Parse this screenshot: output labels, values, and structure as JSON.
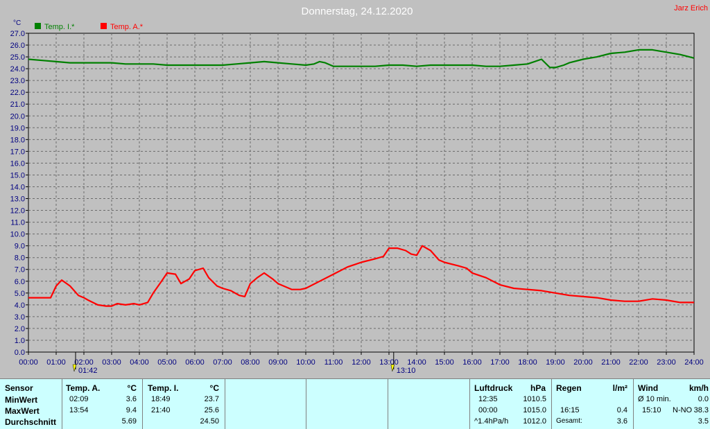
{
  "title": "Donnerstag, 24.12.2020",
  "author": "Jarz Erich",
  "unit": "°C",
  "legend": [
    {
      "label": "Temp. I.*",
      "color": "#008000"
    },
    {
      "label": "Temp. A.*",
      "color": "#ff0000"
    }
  ],
  "chart_data": {
    "type": "line",
    "title": "Donnerstag, 24.12.2020",
    "ylabel": "°C",
    "xlabel": "",
    "ylim": [
      0.0,
      27.0
    ],
    "xlim": [
      0,
      24
    ],
    "grid": true,
    "legend_position": "top-left",
    "y_ticks": [
      "0.0",
      "1.0",
      "2.0",
      "3.0",
      "4.0",
      "5.0",
      "6.0",
      "7.0",
      "8.0",
      "9.0",
      "10.0",
      "11.0",
      "12.0",
      "13.0",
      "14.0",
      "15.0",
      "16.0",
      "17.0",
      "18.0",
      "19.0",
      "20.0",
      "21.0",
      "22.0",
      "23.0",
      "24.0",
      "25.0",
      "26.0",
      "27.0"
    ],
    "x_ticks": [
      "00:00",
      "01:00",
      "02:00",
      "03:00",
      "04:00",
      "05:00",
      "06:00",
      "07:00",
      "08:00",
      "09:00",
      "10:00",
      "11:00",
      "12:00",
      "13:00",
      "14:00",
      "15:00",
      "16:00",
      "17:00",
      "18:00",
      "19:00",
      "20:00",
      "21:00",
      "22:00",
      "23:00",
      "24:00"
    ],
    "markers": [
      {
        "label": "01:42",
        "hour": 1.7
      },
      {
        "label": "13:10",
        "hour": 13.17
      }
    ],
    "series": [
      {
        "name": "Temp. I.*",
        "color": "#008000",
        "x": [
          0,
          0.5,
          1,
          1.5,
          2,
          2.5,
          3,
          3.5,
          4,
          4.5,
          5,
          5.5,
          6,
          6.5,
          7,
          7.5,
          8,
          8.5,
          9,
          9.5,
          10,
          10.3,
          10.5,
          10.7,
          11,
          11.5,
          12,
          12.5,
          13,
          13.5,
          14,
          14.5,
          15,
          15.5,
          16,
          16.5,
          17,
          17.5,
          18,
          18.5,
          18.8,
          19,
          19.3,
          19.5,
          20,
          20.5,
          21,
          21.5,
          22,
          22.5,
          23,
          23.5,
          24
        ],
        "y": [
          24.8,
          24.7,
          24.6,
          24.5,
          24.5,
          24.5,
          24.5,
          24.4,
          24.4,
          24.4,
          24.3,
          24.3,
          24.3,
          24.3,
          24.3,
          24.4,
          24.5,
          24.6,
          24.5,
          24.4,
          24.3,
          24.4,
          24.6,
          24.5,
          24.2,
          24.2,
          24.2,
          24.2,
          24.3,
          24.3,
          24.2,
          24.3,
          24.3,
          24.3,
          24.3,
          24.2,
          24.2,
          24.3,
          24.4,
          24.8,
          24.1,
          24.1,
          24.3,
          24.5,
          24.8,
          25.0,
          25.3,
          25.4,
          25.6,
          25.6,
          25.4,
          25.2,
          24.9
        ]
      },
      {
        "name": "Temp. A.*",
        "color": "#ff0000",
        "x": [
          0,
          0.5,
          0.8,
          1.0,
          1.2,
          1.5,
          1.8,
          2.0,
          2.15,
          2.5,
          2.8,
          3.0,
          3.2,
          3.5,
          3.8,
          4.0,
          4.3,
          4.5,
          4.8,
          5.0,
          5.3,
          5.5,
          5.8,
          6.0,
          6.3,
          6.5,
          6.8,
          7.0,
          7.3,
          7.6,
          7.8,
          8.0,
          8.25,
          8.5,
          8.8,
          9.0,
          9.5,
          9.8,
          10.0,
          10.5,
          11.0,
          11.5,
          12.0,
          12.5,
          12.8,
          13.0,
          13.3,
          13.6,
          13.8,
          14.0,
          14.2,
          14.5,
          14.8,
          15.0,
          15.5,
          15.8,
          16.0,
          16.5,
          17.0,
          17.5,
          18.0,
          18.5,
          19.0,
          19.5,
          20.0,
          20.5,
          21.0,
          21.5,
          22.0,
          22.5,
          23.0,
          23.5,
          24.0
        ],
        "y": [
          4.6,
          4.6,
          4.6,
          5.6,
          6.1,
          5.6,
          4.8,
          4.6,
          4.4,
          4.0,
          3.9,
          3.9,
          4.1,
          4.0,
          4.1,
          4.0,
          4.2,
          5.0,
          6.0,
          6.7,
          6.6,
          5.8,
          6.2,
          6.9,
          7.1,
          6.3,
          5.6,
          5.4,
          5.2,
          4.8,
          4.7,
          5.8,
          6.3,
          6.7,
          6.2,
          5.8,
          5.3,
          5.3,
          5.4,
          6.0,
          6.6,
          7.2,
          7.6,
          7.9,
          8.1,
          8.8,
          8.8,
          8.6,
          8.3,
          8.2,
          9.0,
          8.6,
          7.8,
          7.6,
          7.3,
          7.1,
          6.7,
          6.3,
          5.7,
          5.4,
          5.3,
          5.2,
          5.0,
          4.8,
          4.7,
          4.6,
          4.4,
          4.3,
          4.3,
          4.5,
          4.4,
          4.2,
          4.2
        ]
      }
    ]
  },
  "stats": {
    "labels": {
      "h": "Sensor",
      "min": "MinWert",
      "max": "MaxWert",
      "avg": "Durchschnitt"
    },
    "temp_a": {
      "title": "Temp. A.",
      "unit": "°C",
      "min_time": "02:09",
      "min": "3.6",
      "max_time": "13:54",
      "max": "9.4",
      "avg": "5.69"
    },
    "temp_i": {
      "title": "Temp. I.",
      "unit": "°C",
      "min_time": "18:49",
      "min": "23.7",
      "max_time": "21:40",
      "max": "25.6",
      "avg": "24.50"
    },
    "pressure": {
      "title": "Luftdruck",
      "unit": "hPa",
      "min_time": "12:35",
      "min": "1010.5",
      "max_time": "00:00",
      "max": "1015.0",
      "trend": "^1.4hPa/h",
      "current": "1012.0"
    },
    "rain": {
      "title": "Regen",
      "unit": "l/m²",
      "max_time": "16:15",
      "max": "0.4",
      "total_label": "Gesamt:",
      "total": "3.6"
    },
    "wind": {
      "title": "Wind",
      "unit": "km/h",
      "avg_label": "Ø 10 min.",
      "avg": "0.0",
      "gust_time": "15:10",
      "gust_dir": "N-NO",
      "gust": "38.3",
      "value3": "3.5"
    }
  }
}
